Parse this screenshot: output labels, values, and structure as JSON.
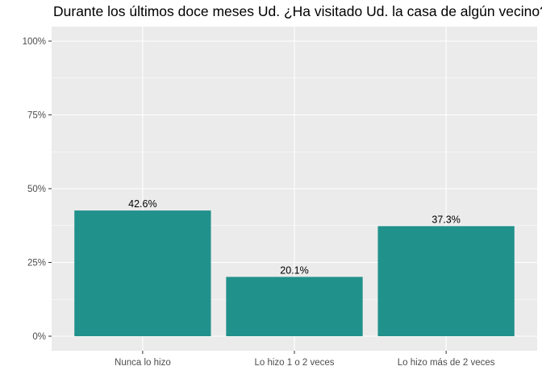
{
  "chart_data": {
    "type": "bar",
    "title": "Durante los últimos doce meses Ud. ¿Ha visitado Ud. la casa de algún vecino?",
    "xlabel": "",
    "ylabel": "",
    "categories": [
      "Nunca lo hizo",
      "Lo hizo 1 o 2 veces",
      "Lo hizo más de 2 veces"
    ],
    "values": [
      42.6,
      20.1,
      37.3
    ],
    "data_labels": [
      "42.6%",
      "20.1%",
      "37.3%"
    ],
    "ylim": [
      0,
      100
    ],
    "y_ticks": [
      0,
      25,
      50,
      75,
      100
    ],
    "y_tick_labels": [
      "0%",
      "25%",
      "50%",
      "75%",
      "100%"
    ],
    "grid": true,
    "legend": "none",
    "colors": {
      "bar": "#21918c",
      "panel_background": "#ebebeb",
      "grid_major": "#ffffff"
    }
  }
}
